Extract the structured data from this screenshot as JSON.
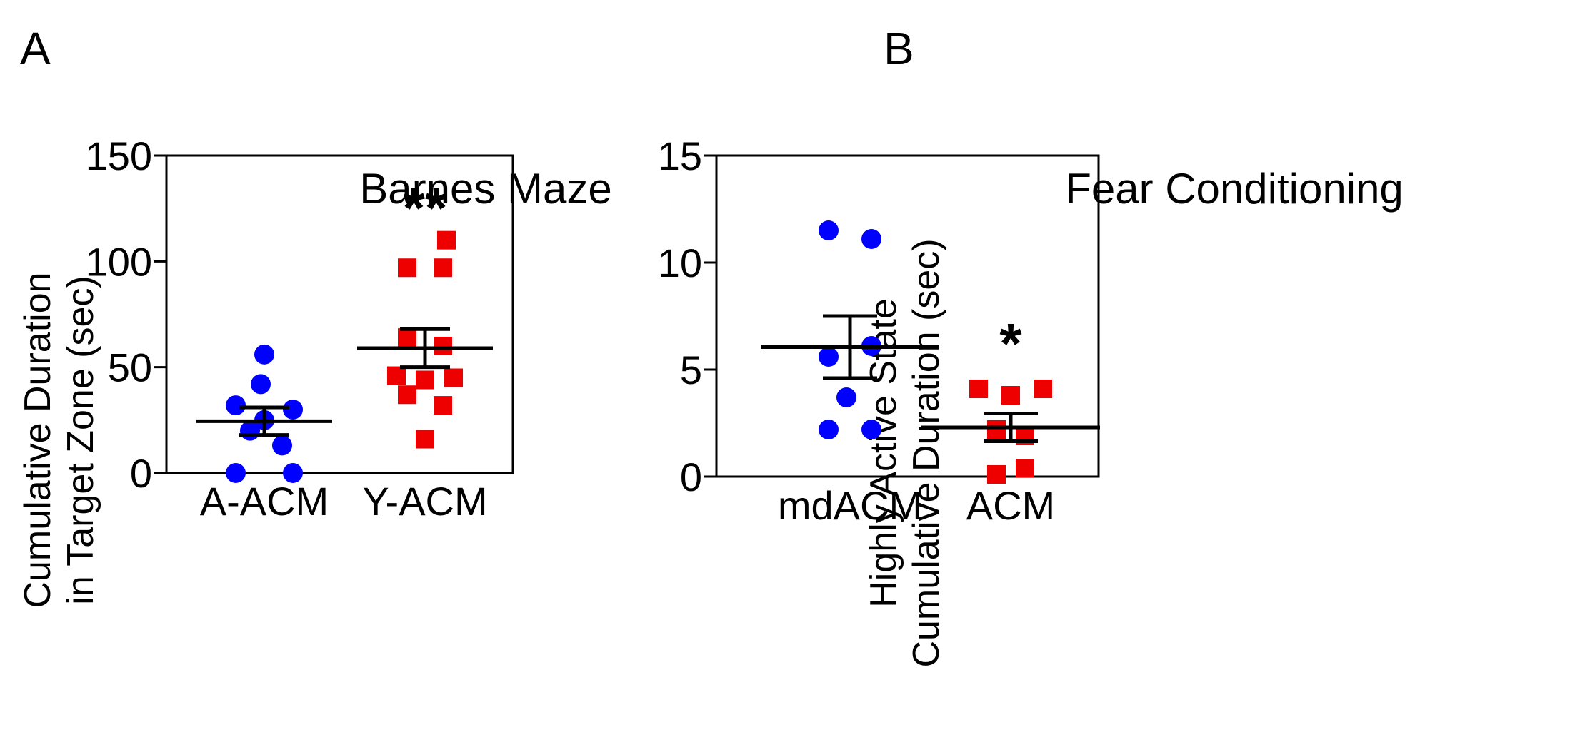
{
  "panels": [
    {
      "letter": "A"
    },
    {
      "letter": "B"
    }
  ],
  "chart_data": [
    {
      "type": "scatter",
      "title": "Barnes Maze",
      "ylabel_lines": [
        "Cumulative Duration",
        "in Target Zone (sec)"
      ],
      "ylim": [
        0,
        150
      ],
      "yticks": [
        "0",
        "50",
        "100",
        "150"
      ],
      "categories": [
        "A-ACM",
        "Y-ACM"
      ],
      "series": [
        {
          "name": "A-ACM",
          "marker": "circle",
          "color": "#0000ff",
          "points": [
            {
              "dx": 0,
              "y": 56
            },
            {
              "dx": -5,
              "y": 42
            },
            {
              "dx": -40,
              "y": 32
            },
            {
              "dx": 40,
              "y": 30
            },
            {
              "dx": 0,
              "y": 25
            },
            {
              "dx": -20,
              "y": 20
            },
            {
              "dx": 25,
              "y": 13
            },
            {
              "dx": -40,
              "y": 0
            },
            {
              "dx": 40,
              "y": 0
            }
          ],
          "mean": 24.5,
          "sem": 6.5
        },
        {
          "name": "Y-ACM",
          "marker": "square",
          "color": "#ee0000",
          "points": [
            {
              "dx": 30,
              "y": 110
            },
            {
              "dx": -25,
              "y": 97
            },
            {
              "dx": 25,
              "y": 97
            },
            {
              "dx": -25,
              "y": 64
            },
            {
              "dx": 25,
              "y": 60
            },
            {
              "dx": -40,
              "y": 46
            },
            {
              "dx": 0,
              "y": 44
            },
            {
              "dx": 40,
              "y": 45
            },
            {
              "dx": -25,
              "y": 37
            },
            {
              "dx": 25,
              "y": 32
            },
            {
              "dx": 0,
              "y": 16
            }
          ],
          "mean": 59,
          "sem": 9
        }
      ],
      "annotations": [
        {
          "category": "Y-ACM",
          "y": 126,
          "text": "**"
        }
      ]
    },
    {
      "type": "scatter",
      "title": "Fear Conditioning",
      "ylabel_lines": [
        "Highly Active State",
        "Cumulative Duration (sec)"
      ],
      "ylim": [
        0,
        15
      ],
      "yticks": [
        "0",
        "5",
        "10",
        "15"
      ],
      "categories": [
        "mdACM",
        "ACM"
      ],
      "series": [
        {
          "name": "mdACM",
          "marker": "circle",
          "color": "#0000ff",
          "points": [
            {
              "dx": -30,
              "y": 11.5
            },
            {
              "dx": 30,
              "y": 11.1
            },
            {
              "dx": 30,
              "y": 6.1
            },
            {
              "dx": -30,
              "y": 5.6
            },
            {
              "dx": -5,
              "y": 3.7
            },
            {
              "dx": -30,
              "y": 2.2
            },
            {
              "dx": 30,
              "y": 2.2
            }
          ],
          "mean": 6.05,
          "sem": 1.45
        },
        {
          "name": "ACM",
          "marker": "square",
          "color": "#ee0000",
          "points": [
            {
              "dx": -45,
              "y": 4.1
            },
            {
              "dx": 0,
              "y": 3.8
            },
            {
              "dx": 45,
              "y": 4.1
            },
            {
              "dx": -20,
              "y": 2.2
            },
            {
              "dx": 20,
              "y": 1.9
            },
            {
              "dx": -20,
              "y": 0.1
            },
            {
              "dx": 20,
              "y": 0.4
            }
          ],
          "mean": 2.3,
          "sem": 0.65
        }
      ],
      "annotations": [
        {
          "category": "ACM",
          "y": 6.3,
          "text": "*"
        }
      ]
    }
  ]
}
